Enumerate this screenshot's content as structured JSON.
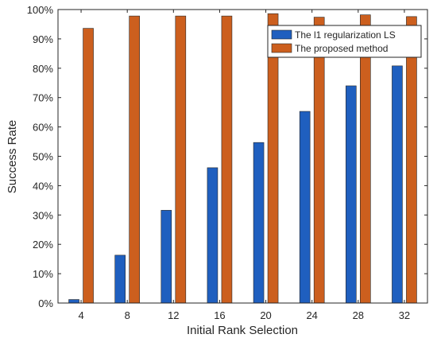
{
  "chart_data": {
    "type": "bar",
    "title": "",
    "xlabel": "Initial Rank Selection",
    "ylabel": "Success Rate",
    "categories": [
      "4",
      "8",
      "12",
      "16",
      "20",
      "24",
      "28",
      "32"
    ],
    "ylim": [
      0,
      100
    ],
    "yticks": [
      "0%",
      "10%",
      "20%",
      "30%",
      "40%",
      "50%",
      "60%",
      "70%",
      "80%",
      "90%",
      "100%"
    ],
    "grid": false,
    "legend_position": "top-right",
    "series": [
      {
        "name": "The l1 regularization LS",
        "color": "#1f5fbf",
        "values": [
          1.2,
          16.3,
          31.6,
          46.1,
          54.7,
          65.3,
          74.0,
          80.8
        ]
      },
      {
        "name": "The proposed method",
        "color": "#cc5f1e",
        "values": [
          93.6,
          97.8,
          97.8,
          97.8,
          98.6,
          97.4,
          98.2,
          97.6
        ]
      }
    ]
  }
}
